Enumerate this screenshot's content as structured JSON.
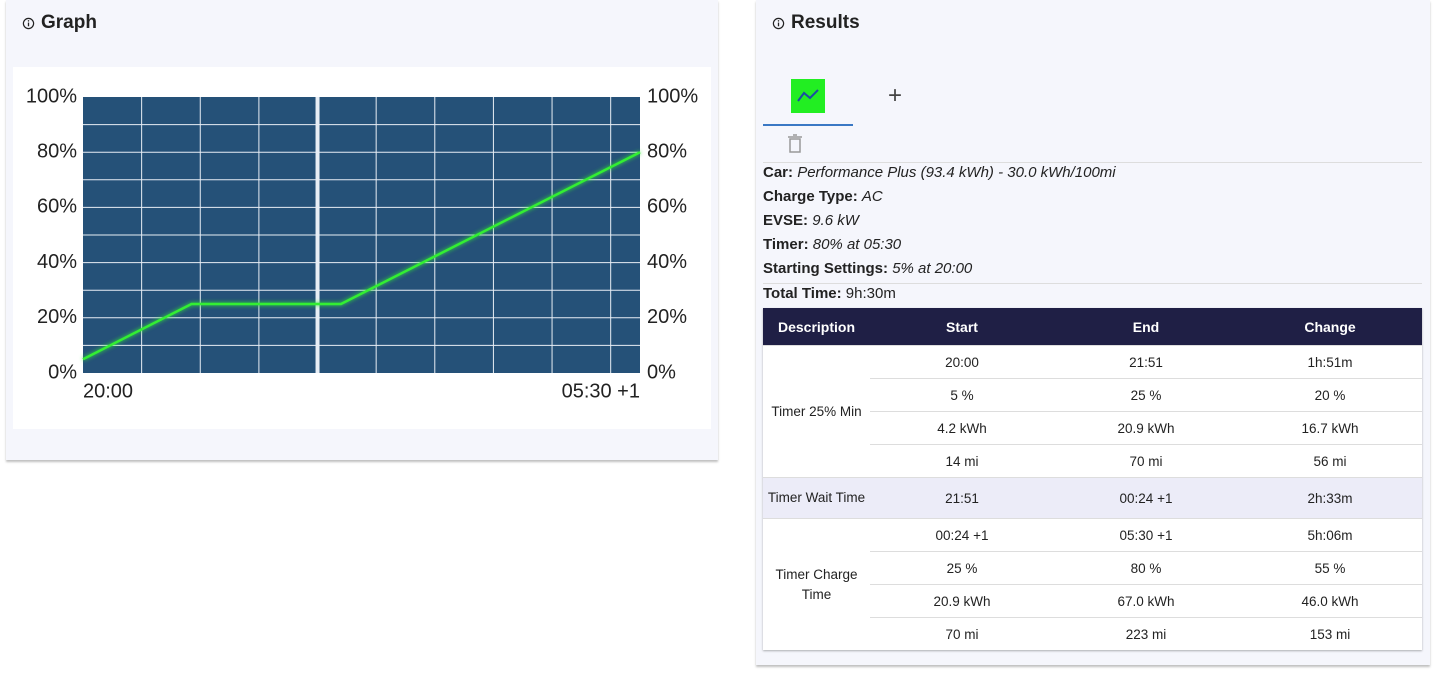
{
  "graph": {
    "title": "Graph",
    "chart_data": {
      "type": "line",
      "x": [
        0,
        111,
        264,
        570
      ],
      "series": [
        {
          "color": "#33ee33",
          "values": [
            5,
            25,
            25,
            80
          ]
        }
      ],
      "xlim": [
        0,
        570
      ],
      "xticks": [
        {
          "value": 0,
          "label": "20:00"
        },
        {
          "value": 570,
          "label": "05:30 +1"
        }
      ],
      "ylim": [
        0,
        100
      ],
      "yticks": [
        {
          "value": 0,
          "label": "0%"
        },
        {
          "value": 20,
          "label": "20%"
        },
        {
          "value": 40,
          "label": "40%"
        },
        {
          "value": 60,
          "label": "60%"
        },
        {
          "value": 80,
          "label": "80%"
        },
        {
          "value": 100,
          "label": "100%"
        }
      ],
      "y2lim": [
        0,
        100
      ],
      "y2ticks": [
        {
          "value": 0,
          "label": "0%"
        },
        {
          "value": 20,
          "label": "20%"
        },
        {
          "value": 40,
          "label": "40%"
        },
        {
          "value": 60,
          "label": "60%"
        },
        {
          "value": 80,
          "label": "80%"
        },
        {
          "value": 100,
          "label": "100%"
        }
      ],
      "xgrid": [
        60,
        120,
        180,
        300,
        360,
        420,
        480,
        540
      ],
      "xgrid_major": [
        240
      ],
      "ygrid": [
        10,
        20,
        30,
        40,
        50,
        60,
        70,
        80,
        90
      ],
      "plot_color": "#255178",
      "grid": true
    }
  },
  "results": {
    "title": "Results",
    "add_tab": "+",
    "info": [
      {
        "label": "Car:",
        "value": "Performance Plus (93.4 kWh) - 30.0 kWh/100mi"
      },
      {
        "label": "Charge Type:",
        "value": "AC"
      },
      {
        "label": "EVSE:",
        "value": "9.6 kW"
      },
      {
        "label": "Timer:",
        "value": "80% at 05:30"
      },
      {
        "label": "Starting Settings:",
        "value": "5% at 20:00"
      }
    ],
    "total": {
      "label": "Total Time:",
      "value": "9h:30m"
    },
    "table": {
      "header": [
        "Description",
        "Start",
        "End",
        "Change"
      ],
      "groups": [
        {
          "description": "Timer 25% Min",
          "rows": [
            [
              "20:00",
              "21:51",
              "1h:51m"
            ],
            [
              "5 %",
              "25 %",
              "20 %"
            ],
            [
              "4.2 kWh",
              "20.9 kWh",
              "16.7 kWh"
            ],
            [
              "14 mi",
              "70 mi",
              "56 mi"
            ]
          ]
        },
        {
          "description": "Timer Wait Time",
          "rows": [
            [
              "21:51",
              "00:24 +1",
              "2h:33m"
            ]
          ]
        },
        {
          "description": "Timer Charge Time",
          "rows": [
            [
              "00:24 +1",
              "05:30 +1",
              "5h:06m"
            ],
            [
              "25 %",
              "80 %",
              "55 %"
            ],
            [
              "20.9 kWh",
              "67.0 kWh",
              "46.0 kWh"
            ],
            [
              "70 mi",
              "223 mi",
              "153 mi"
            ]
          ]
        }
      ]
    }
  }
}
